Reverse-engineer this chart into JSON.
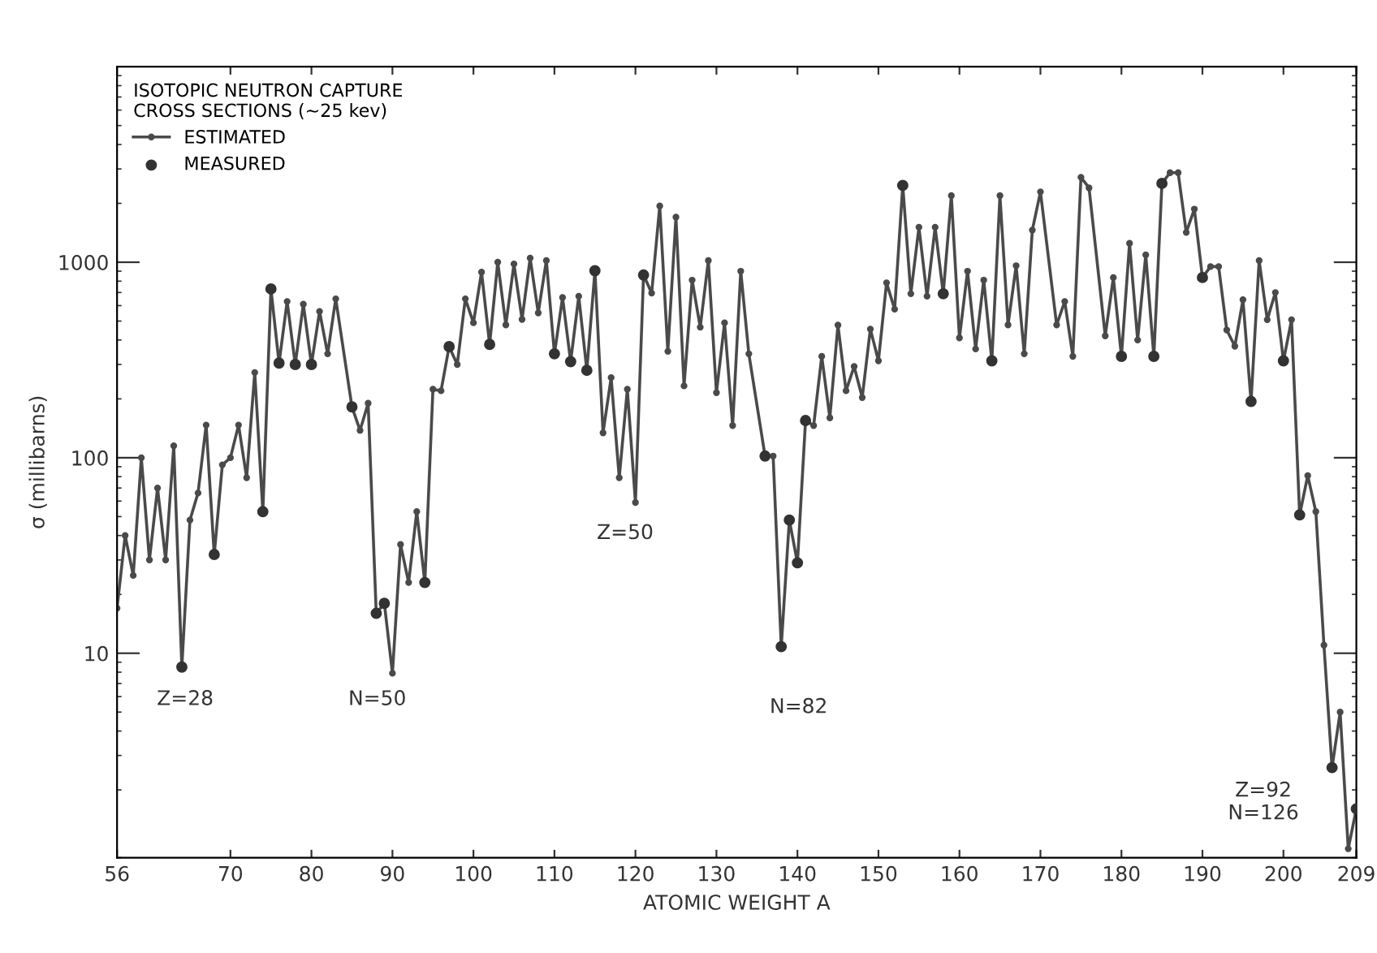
{
  "chart_data": {
    "type": "line",
    "legend_title": "ISOTOPIC NEUTRON CAPTURE\nCROSS SECTIONS (~25 kev)",
    "xlabel": "ATOMIC WEIGHT A",
    "ylabel": "σ (millibarns)",
    "xlim": [
      56,
      209
    ],
    "xticks": [
      56,
      70,
      80,
      90,
      100,
      110,
      120,
      130,
      140,
      150,
      160,
      170,
      180,
      190,
      200,
      209
    ],
    "ylim": [
      0.9,
      10000
    ],
    "yticks": [
      10,
      100,
      1000
    ],
    "log": "y",
    "legend": "top left",
    "series": [
      {
        "name": "ESTIMATED",
        "color": "#4a4a4a",
        "marker": "circle",
        "x": [
          56,
          57,
          58,
          59,
          60,
          61,
          62,
          63,
          64,
          65,
          66,
          67,
          68,
          69,
          70,
          71,
          72,
          73,
          74,
          75,
          76,
          77,
          78,
          79,
          80,
          81,
          82,
          83,
          85,
          86,
          87,
          88,
          89,
          90,
          91,
          92,
          93,
          94,
          95,
          96,
          97,
          98,
          99,
          100,
          101,
          102,
          103,
          104,
          105,
          106,
          107,
          108,
          109,
          110,
          111,
          112,
          113,
          114,
          115,
          116,
          117,
          118,
          119,
          120,
          121,
          122,
          123,
          124,
          125,
          126,
          127,
          128,
          129,
          130,
          131,
          132,
          133,
          134,
          136,
          137,
          138,
          139,
          140,
          141,
          142,
          143,
          144,
          145,
          146,
          147,
          148,
          149,
          150,
          151,
          152,
          153,
          154,
          155,
          156,
          157,
          158,
          159,
          160,
          161,
          162,
          163,
          164,
          165,
          166,
          167,
          168,
          169,
          170,
          172,
          173,
          174,
          175,
          176,
          178,
          179,
          180,
          181,
          182,
          183,
          184,
          185,
          186,
          187,
          188,
          189,
          190,
          191,
          192,
          193,
          194,
          195,
          196,
          197,
          198,
          199,
          200,
          201,
          202,
          203,
          204,
          205,
          206,
          207,
          208,
          209
        ],
        "values": [
          17,
          40,
          25,
          100,
          30,
          70,
          30,
          115,
          8.5,
          48,
          66,
          147,
          32,
          92,
          100,
          147,
          79,
          273,
          53,
          730,
          305,
          630,
          300,
          610,
          300,
          560,
          340,
          650,
          182,
          138,
          190,
          16,
          18,
          7.9,
          36,
          23,
          53,
          23,
          224,
          220,
          370,
          300,
          650,
          490,
          890,
          380,
          1000,
          478,
          980,
          510,
          1050,
          550,
          1020,
          340,
          660,
          310,
          670,
          280,
          905,
          134,
          257,
          79,
          224,
          59,
          860,
          695,
          1940,
          350,
          1700,
          233,
          810,
          465,
          1020,
          215,
          490,
          146,
          900,
          340,
          102,
          102,
          10.8,
          48,
          29,
          155,
          146,
          330,
          160,
          477,
          220,
          293,
          203,
          455,
          313,
          785,
          575,
          2470,
          690,
          1510,
          670,
          1510,
          690,
          2190,
          410,
          900,
          360,
          810,
          313,
          2190,
          478,
          960,
          340,
          1460,
          2290,
          478,
          630,
          330,
          2720,
          2400,
          420,
          835,
          330,
          1250,
          400,
          1090,
          330,
          2530,
          2870,
          2870,
          1420,
          1870,
          835,
          950,
          950,
          450,
          372,
          643,
          194,
          1020,
          508,
          700,
          313,
          508,
          51,
          81,
          53,
          11,
          2.6,
          5.0,
          1.0,
          1.6
        ]
      },
      {
        "name": "MEASURED",
        "type": "scatter",
        "color": "#333333",
        "marker": "circle",
        "x": [
          64,
          68,
          74,
          75,
          76,
          78,
          80,
          85,
          88,
          89,
          94,
          97,
          102,
          110,
          112,
          114,
          115,
          121,
          136,
          138,
          139,
          140,
          141,
          153,
          158,
          164,
          180,
          184,
          185,
          190,
          196,
          200,
          202,
          206,
          209
        ],
        "values": [
          8.5,
          32,
          53,
          730,
          305,
          300,
          300,
          182,
          16,
          18,
          23,
          370,
          380,
          340,
          310,
          280,
          905,
          860,
          102,
          10.8,
          48,
          29,
          155,
          2470,
          690,
          313,
          330,
          330,
          2530,
          835,
          194,
          313,
          51,
          2.6,
          1.6
        ]
      }
    ],
    "annotations": [
      "Z=28",
      "N=50",
      "Z=50",
      "N=82",
      "Z=92\nN=126"
    ]
  }
}
